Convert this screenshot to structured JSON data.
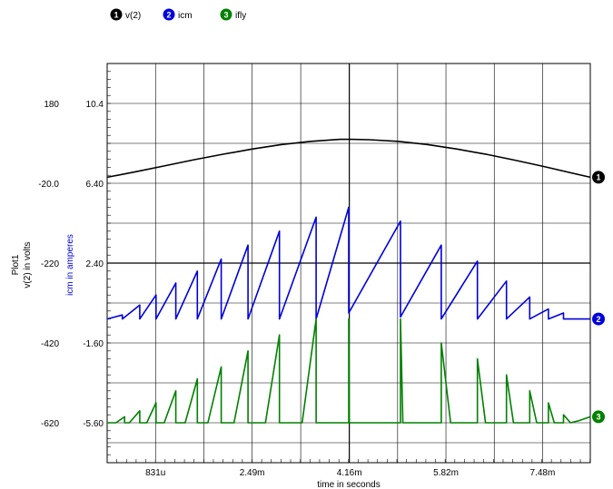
{
  "chart_data": {
    "type": "line",
    "plot_name": "Plot1",
    "xlabel": "time in seconds",
    "ylabel_left": "v(2) in volts",
    "ylabel_right": "icm in amperes",
    "x_range": [
      0,
      0.0083
    ],
    "x_ticks": [
      "831u",
      "2.49m",
      "4.16m",
      "5.82m",
      "7.48m"
    ],
    "x_tick_values": [
      0.000831,
      0.00249,
      0.00416,
      0.00582,
      0.00748
    ],
    "y_left_ticks": [
      "180",
      "-20.0",
      "-220",
      "-420",
      "-620"
    ],
    "y_left_tick_values": [
      180,
      -20,
      -220,
      -420,
      -620
    ],
    "y_left_range": [
      -720,
      280
    ],
    "y_right_ticks": [
      "10.4",
      "6.40",
      "2.40",
      "-1.60",
      "-5.60"
    ],
    "y_right_tick_values": [
      10.4,
      6.4,
      2.4,
      -1.6,
      -5.6
    ],
    "grid": true,
    "legend_position": "top-left",
    "series": [
      {
        "name": "v(2)",
        "number": "1",
        "color": "#000000",
        "axis": "left",
        "x": [
          0,
          0.0005,
          0.001,
          0.0015,
          0.002,
          0.0025,
          0.003,
          0.0035,
          0.004,
          0.0042,
          0.0045,
          0.005,
          0.0055,
          0.006,
          0.0065,
          0.007,
          0.0075,
          0.0083
        ],
        "y": [
          -5,
          9,
          24,
          39,
          53,
          66,
          77,
          85,
          90,
          90,
          89,
          85,
          77,
          66,
          53,
          38,
          22,
          -5
        ]
      },
      {
        "name": "icm",
        "number": "2",
        "color": "#0000dd",
        "axis": "right",
        "x": [
          0,
          0.00026,
          0.00026,
          0.00056,
          0.00056,
          0.00084,
          0.00084,
          0.00118,
          0.00118,
          0.00155,
          0.00155,
          0.00196,
          0.00196,
          0.00242,
          0.00242,
          0.00296,
          0.00296,
          0.00359,
          0.00359,
          0.00415,
          0.00415,
          0.00504,
          0.00504,
          0.00574,
          0.00574,
          0.00636,
          0.00636,
          0.00686,
          0.00686,
          0.00726,
          0.00726,
          0.00758,
          0.00758,
          0.00784,
          0.00784,
          0.0083
        ],
        "y": [
          -0.4,
          -0.2,
          -0.4,
          0.3,
          -0.4,
          0.8,
          -0.4,
          1.4,
          -0.4,
          2.0,
          -0.4,
          2.6,
          -0.4,
          3.3,
          -0.4,
          4.0,
          -0.4,
          4.7,
          -0.4,
          5.2,
          -0.1,
          4.5,
          -0.3,
          3.3,
          -0.4,
          2.5,
          -0.4,
          1.5,
          -0.4,
          0.7,
          -0.4,
          0.1,
          -0.4,
          -0.1,
          -0.4,
          -0.4
        ]
      },
      {
        "name": "ifly",
        "number": "3",
        "color": "#008000",
        "axis": "right",
        "x": [
          0,
          0.00015,
          0.0003,
          0.0003,
          0.00038,
          0.00056,
          0.00056,
          0.00068,
          0.00084,
          0.00084,
          0.00098,
          0.00118,
          0.00118,
          0.00134,
          0.00155,
          0.00155,
          0.00173,
          0.00196,
          0.00196,
          0.00218,
          0.00242,
          0.00242,
          0.00272,
          0.00296,
          0.00296,
          0.00335,
          0.00359,
          0.00359,
          0.00415,
          0.00415,
          0.00416,
          0.00504,
          0.00504,
          0.00508,
          0.00574,
          0.00574,
          0.0059,
          0.00636,
          0.00636,
          0.0065,
          0.00686,
          0.00686,
          0.00698,
          0.00726,
          0.00726,
          0.00738,
          0.00758,
          0.00758,
          0.00768,
          0.00784,
          0.00784,
          0.00796,
          0.0081,
          0.0083
        ],
        "y": [
          -5.6,
          -5.6,
          -5.3,
          -5.6,
          -5.6,
          -5.0,
          -5.6,
          -5.6,
          -4.6,
          -5.6,
          -5.6,
          -4.0,
          -5.6,
          -5.6,
          -3.4,
          -5.6,
          -5.6,
          -2.8,
          -5.6,
          -5.6,
          -2.0,
          -5.6,
          -5.6,
          -1.2,
          -5.6,
          -5.6,
          -0.4,
          -5.6,
          -5.6,
          -0.4,
          -5.6,
          -5.6,
          -0.4,
          -5.6,
          -5.6,
          -1.6,
          -5.6,
          -5.6,
          -2.4,
          -5.6,
          -5.6,
          -3.2,
          -5.6,
          -5.6,
          -4.0,
          -5.6,
          -5.6,
          -4.6,
          -5.6,
          -5.6,
          -5.2,
          -5.6,
          -5.5,
          -5.3
        ]
      }
    ]
  }
}
